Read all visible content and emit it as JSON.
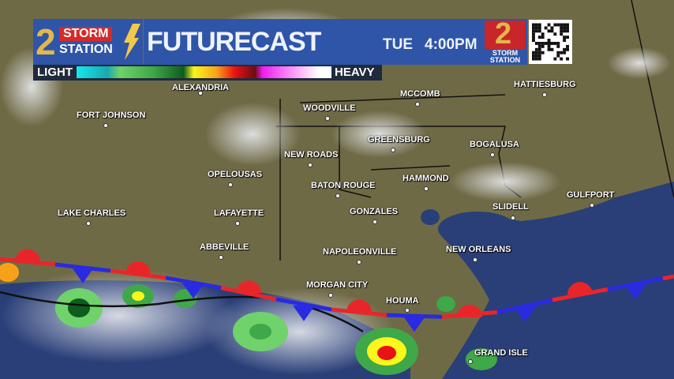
{
  "header": {
    "logo_number": "2",
    "logo_line1": "STORM",
    "logo_line2": "STATION",
    "title": "FUTURECAST",
    "day": "TUE",
    "time": "4:00PM",
    "logo2_number": "2",
    "logo2_text": "STORM STATION",
    "qr_icon": "qr-code-icon"
  },
  "legend": {
    "low": "LIGHT",
    "high": "HEAVY",
    "colors": [
      "#16e8ec",
      "#17a9b1",
      "#6fd26a",
      "#3fa848",
      "#0e5c1e",
      "#fbf61c",
      "#f7a11b",
      "#ea1212",
      "#6a0c12",
      "#f01cf1",
      "#f99af6",
      "#ffffff"
    ]
  },
  "front": {
    "type": "stationary",
    "warm_color": "#e8262a",
    "cold_color": "#2a2ae0"
  },
  "cities": [
    "ALEXANDRIA",
    "FORT JOHNSON",
    "WOODVILLE",
    "MCCOMB",
    "HATTIESBURG",
    "GREENSBURG",
    "BOGALUSA",
    "NEW ROADS",
    "OPELOUSAS",
    "BATON ROUGE",
    "HAMMOND",
    "GULFPORT",
    "LAKE CHARLES",
    "LAFAYETTE",
    "GONZALES",
    "SLIDELL",
    "ABBEVILLE",
    "NAPOLEONVILLE",
    "NEW ORLEANS",
    "MORGAN CITY",
    "HOUMA",
    "GRAND ISLE"
  ]
}
